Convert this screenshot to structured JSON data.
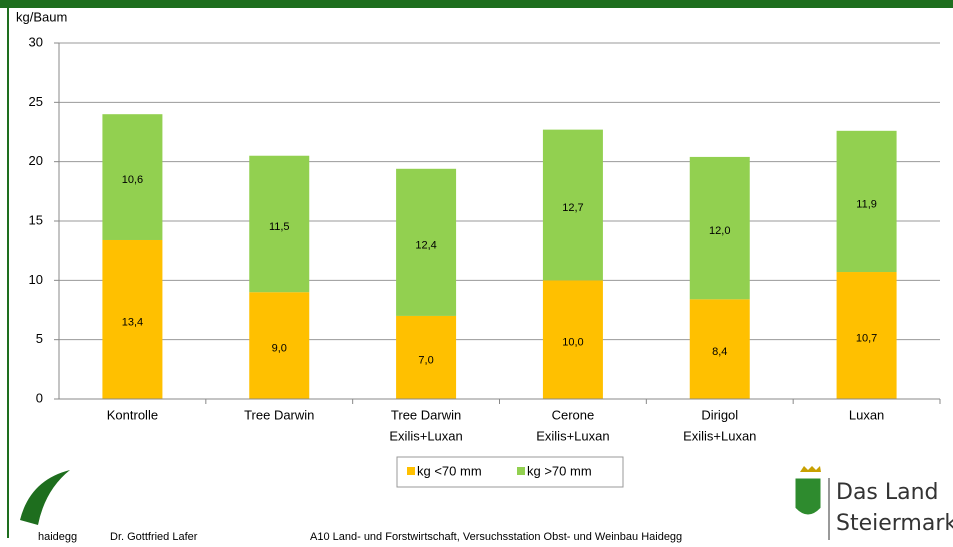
{
  "chart_data": {
    "type": "stacked-bar",
    "y_label": "kg/Baum",
    "categories": [
      [
        "Kontrolle"
      ],
      [
        "Tree Darwin"
      ],
      [
        "Tree Darwin",
        "Exilis+Luxan"
      ],
      [
        "Cerone",
        "Exilis+Luxan"
      ],
      [
        "Dirigol",
        "Exilis+Luxan"
      ],
      [
        "Luxan"
      ]
    ],
    "series": [
      {
        "name": "kg <70 mm",
        "color": "#ffc000",
        "values": [
          13.4,
          9.0,
          7.0,
          10.0,
          8.4,
          10.7
        ],
        "value_labels": [
          "13,4",
          "9,0",
          "7,0",
          "10,0",
          "8,4",
          "10,7"
        ]
      },
      {
        "name": "kg >70 mm",
        "color": "#92d050",
        "values": [
          10.6,
          11.5,
          12.4,
          12.7,
          12.0,
          11.9
        ],
        "value_labels": [
          "10,6",
          "11,5",
          "12,4",
          "12,7",
          "12,0",
          "11,9"
        ]
      }
    ],
    "ylim": [
      0,
      30
    ],
    "yticks": [
      0,
      5,
      10,
      15,
      20,
      25,
      30
    ],
    "grid": true,
    "legend": "bottom"
  },
  "footer": {
    "logo": "haidegg",
    "author": "Dr. Gottfried Lafer",
    "institution": "A10 Land- und Forstwirtschaft, Versuchsstation Obst- und Weinbau Haidegg",
    "brand_line1": "Das Land",
    "brand_line2": "Steiermark"
  }
}
